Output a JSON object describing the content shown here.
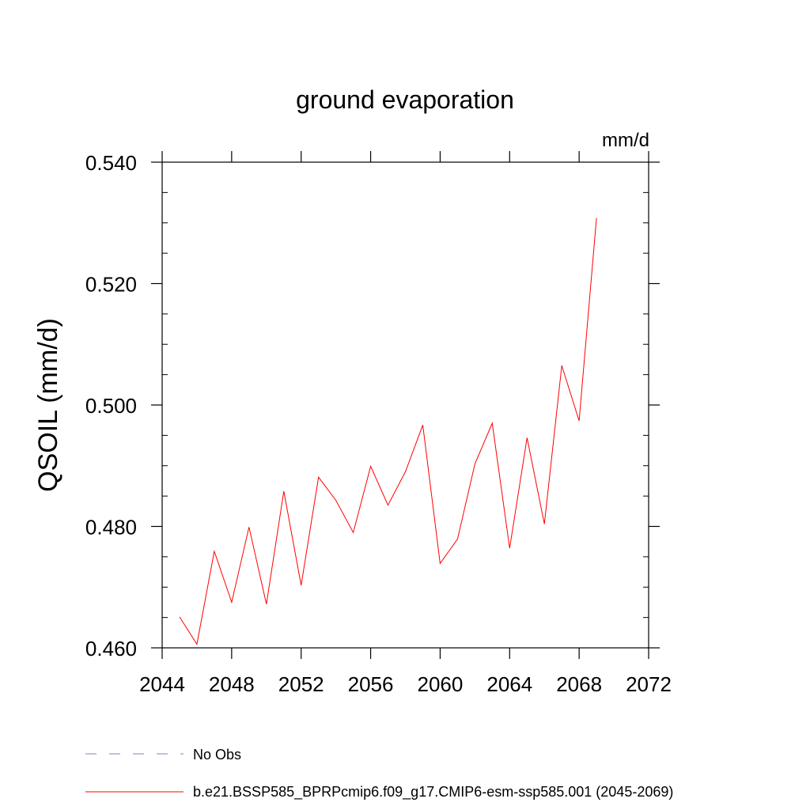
{
  "chart_data": {
    "type": "line",
    "title": "ground evaporation",
    "units": "mm/d",
    "ylabel": "QSOIL  (mm/d)",
    "xlabel": "",
    "xlim": [
      2044,
      2072
    ],
    "ylim": [
      0.46,
      0.54
    ],
    "x_ticks": [
      2044,
      2048,
      2052,
      2056,
      2060,
      2064,
      2068,
      2072
    ],
    "x_tick_labels": [
      "2044",
      "2048",
      "2052",
      "2056",
      "2060",
      "2064",
      "2068",
      "2072"
    ],
    "y_ticks": [
      0.46,
      0.48,
      0.5,
      0.52,
      0.54
    ],
    "y_tick_labels": [
      "0.460",
      "0.480",
      "0.500",
      "0.520",
      "0.540"
    ],
    "grid": false,
    "series": [
      {
        "name": "b.e21.BSSP585_BPRPcmip6.f09_g17.CMIP6-esm-ssp585.001 (2045-2069)",
        "color": "#ff0000",
        "x": [
          2045,
          2046,
          2047,
          2048,
          2049,
          2050,
          2051,
          2052,
          2053,
          2054,
          2055,
          2056,
          2057,
          2058,
          2059,
          2060,
          2061,
          2062,
          2063,
          2064,
          2065,
          2066,
          2067,
          2068,
          2069
        ],
        "values": [
          0.4651,
          0.4606,
          0.4759,
          0.4675,
          0.4799,
          0.4672,
          0.4858,
          0.4703,
          0.4881,
          0.4843,
          0.479,
          0.4899,
          0.4835,
          0.489,
          0.4967,
          0.4739,
          0.4779,
          0.4903,
          0.497,
          0.4764,
          0.4946,
          0.4804,
          0.5065,
          0.4974,
          0.5308
        ]
      }
    ],
    "legend": {
      "position": "bottom",
      "entries": [
        {
          "label": "No Obs",
          "style": "dashed",
          "color": "#8080c0"
        },
        {
          "label": "b.e21.BSSP585_BPRPcmip6.f09_g17.CMIP6-esm-ssp585.001 (2045-2069)",
          "style": "solid",
          "color": "#ff0000"
        }
      ]
    }
  }
}
